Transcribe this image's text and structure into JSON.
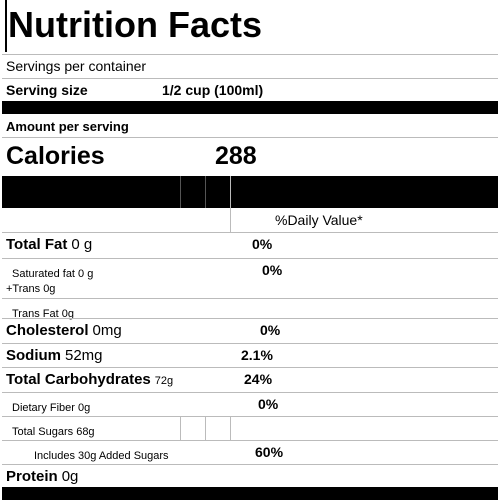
{
  "title": "Nutrition Facts",
  "servings_per_container": "Servings per container",
  "serving_size": {
    "label": "Serving size",
    "value": "1/2 cup (100ml)"
  },
  "amount_per_serving": "Amount per serving",
  "calories": {
    "label": "Calories",
    "value": "288"
  },
  "daily_value_header": "%Daily Value*",
  "rows": [
    {
      "name": "Total Fat",
      "amount": "0 g",
      "percent": "0%"
    },
    {
      "name": "Saturated fat 0 g",
      "note": "+Trans 0g",
      "percent": "0%"
    },
    {
      "name": "Trans Fat 0g"
    },
    {
      "name": "Cholesterol",
      "amount": "0mg",
      "percent": "0%"
    },
    {
      "name": "Sodium",
      "amount": "52mg",
      "percent": "2.1%"
    },
    {
      "name": "Total Carbohydrates",
      "amount": "72g",
      "percent": "24%"
    },
    {
      "name": "Dietary Fiber 0g",
      "percent": "0%"
    },
    {
      "name": "Total Sugars 68g"
    },
    {
      "name": "Includes 30g Added Sugars",
      "percent": "60%"
    },
    {
      "name": "Protein",
      "amount": "0g"
    }
  ]
}
